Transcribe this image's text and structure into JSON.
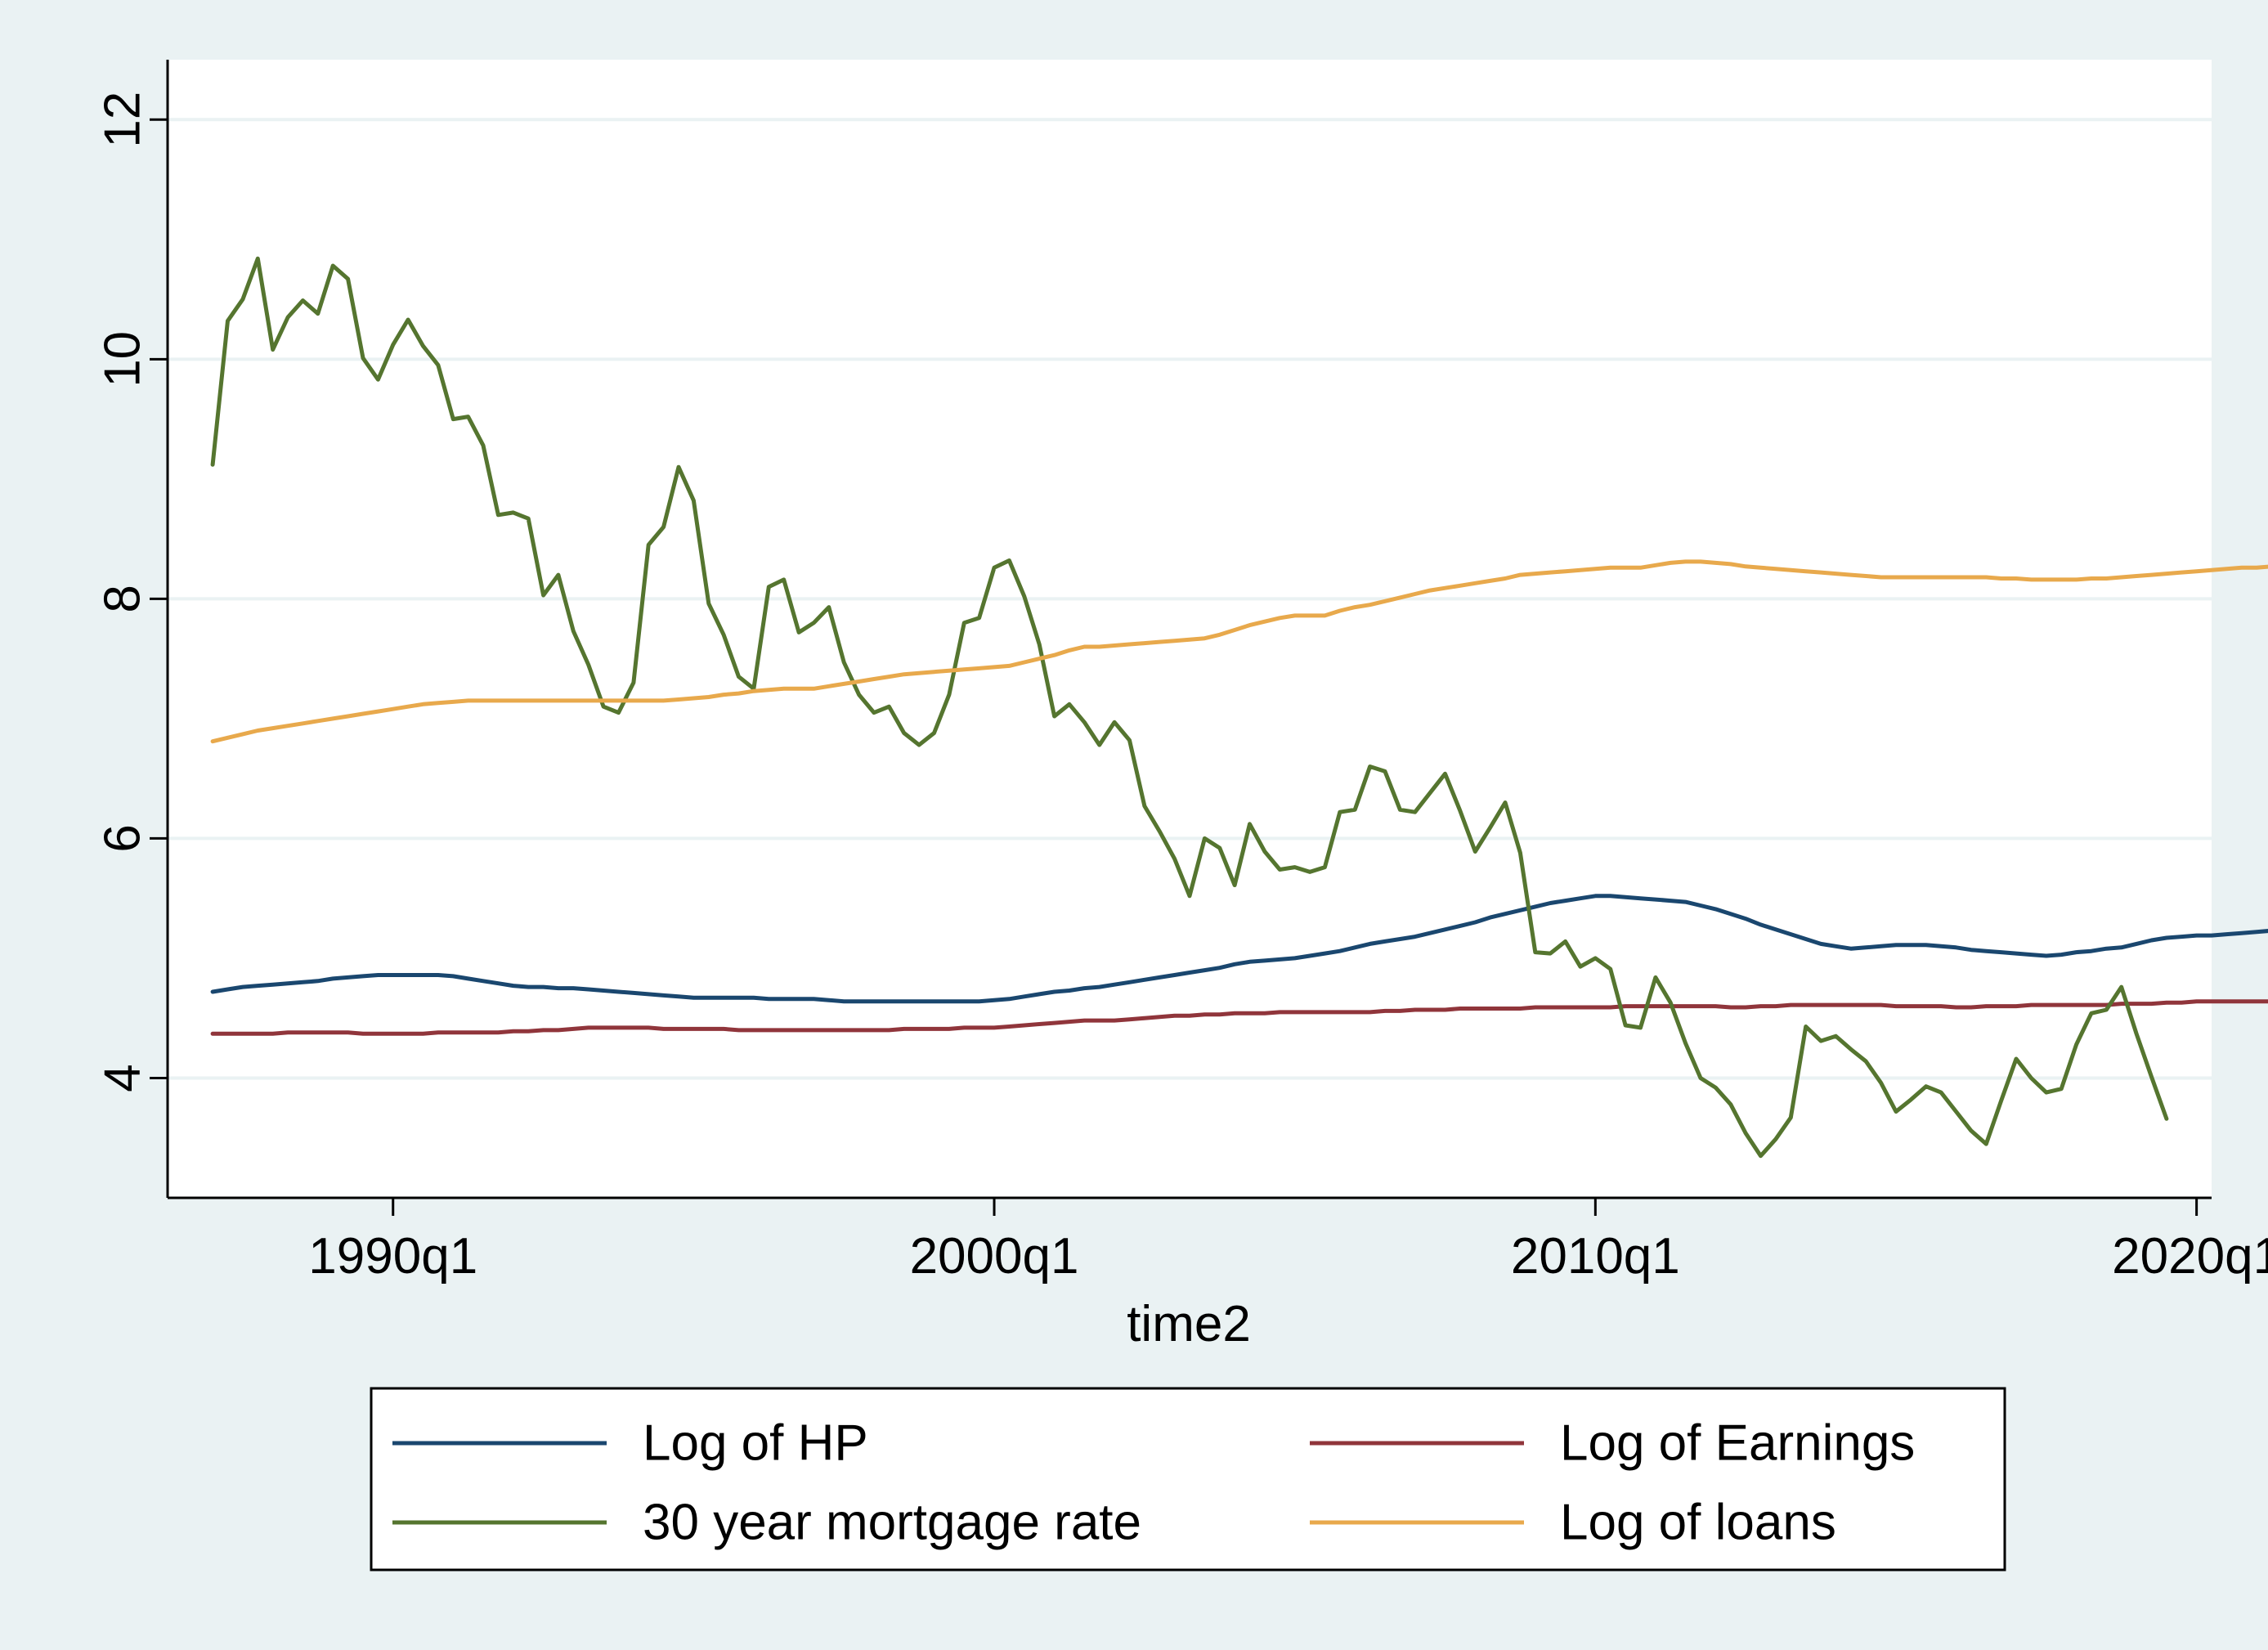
{
  "chart_data": {
    "type": "line",
    "title": "",
    "xlabel": "time2",
    "ylabel": "",
    "xlim": [
      "1986q2",
      "2020q2"
    ],
    "ylim": [
      3.0,
      12.5
    ],
    "x_start": "1987q1",
    "x_end": "2019q3",
    "xticks": [
      {
        "value": "1990q1",
        "label": "1990q1"
      },
      {
        "value": "2000q1",
        "label": "2000q1"
      },
      {
        "value": "2010q1",
        "label": "2010q1"
      },
      {
        "value": "2020q1",
        "label": "2020q1"
      }
    ],
    "yticks": [
      {
        "value": 4,
        "label": "4"
      },
      {
        "value": 6,
        "label": "6"
      },
      {
        "value": 8,
        "label": "8"
      },
      {
        "value": 10,
        "label": "10"
      },
      {
        "value": 12,
        "label": "12"
      }
    ],
    "grid": true,
    "legend_position": "bottom",
    "series": [
      {
        "name": "Log of HP",
        "color": "#1a476f",
        "values": [
          4.72,
          4.74,
          4.76,
          4.77,
          4.78,
          4.79,
          4.8,
          4.81,
          4.83,
          4.84,
          4.85,
          4.86,
          4.86,
          4.86,
          4.86,
          4.86,
          4.85,
          4.83,
          4.81,
          4.79,
          4.77,
          4.76,
          4.76,
          4.75,
          4.75,
          4.74,
          4.73,
          4.72,
          4.71,
          4.7,
          4.69,
          4.68,
          4.67,
          4.67,
          4.67,
          4.67,
          4.67,
          4.66,
          4.66,
          4.66,
          4.66,
          4.65,
          4.64,
          4.64,
          4.64,
          4.64,
          4.64,
          4.64,
          4.64,
          4.64,
          4.64,
          4.64,
          4.65,
          4.66,
          4.68,
          4.7,
          4.72,
          4.73,
          4.75,
          4.76,
          4.78,
          4.8,
          4.82,
          4.84,
          4.86,
          4.88,
          4.9,
          4.92,
          4.95,
          4.97,
          4.98,
          4.99,
          5.0,
          5.02,
          5.04,
          5.06,
          5.09,
          5.12,
          5.14,
          5.16,
          5.18,
          5.21,
          5.24,
          5.27,
          5.3,
          5.34,
          5.37,
          5.4,
          5.43,
          5.46,
          5.48,
          5.5,
          5.52,
          5.52,
          5.51,
          5.5,
          5.49,
          5.48,
          5.47,
          5.44,
          5.41,
          5.37,
          5.33,
          5.28,
          5.24,
          5.2,
          5.16,
          5.12,
          5.1,
          5.08,
          5.09,
          5.1,
          5.11,
          5.11,
          5.11,
          5.1,
          5.09,
          5.07,
          5.06,
          5.05,
          5.04,
          5.03,
          5.02,
          5.03,
          5.05,
          5.06,
          5.08,
          5.09,
          5.12,
          5.15,
          5.17,
          5.18,
          5.19,
          5.19,
          5.2,
          5.21,
          5.22,
          5.23,
          5.23,
          5.24,
          5.24,
          5.24,
          5.25,
          5.26,
          5.27,
          5.27,
          5.28,
          5.29,
          5.3,
          5.31,
          5.31,
          5.31,
          5.31,
          5.32,
          5.32,
          5.32,
          5.32,
          5.32,
          5.31
        ]
      },
      {
        "name": "Log of Earnings",
        "color": "#90353b",
        "values": [
          4.37,
          4.37,
          4.37,
          4.37,
          4.37,
          4.38,
          4.38,
          4.38,
          4.38,
          4.38,
          4.37,
          4.37,
          4.37,
          4.37,
          4.37,
          4.38,
          4.38,
          4.38,
          4.38,
          4.38,
          4.39,
          4.39,
          4.4,
          4.4,
          4.41,
          4.42,
          4.42,
          4.42,
          4.42,
          4.42,
          4.41,
          4.41,
          4.41,
          4.41,
          4.41,
          4.4,
          4.4,
          4.4,
          4.4,
          4.4,
          4.4,
          4.4,
          4.4,
          4.4,
          4.4,
          4.4,
          4.41,
          4.41,
          4.41,
          4.41,
          4.42,
          4.42,
          4.42,
          4.43,
          4.44,
          4.45,
          4.46,
          4.47,
          4.48,
          4.48,
          4.48,
          4.49,
          4.5,
          4.51,
          4.52,
          4.52,
          4.53,
          4.53,
          4.54,
          4.54,
          4.54,
          4.55,
          4.55,
          4.55,
          4.55,
          4.55,
          4.55,
          4.55,
          4.56,
          4.56,
          4.57,
          4.57,
          4.57,
          4.58,
          4.58,
          4.58,
          4.58,
          4.58,
          4.59,
          4.59,
          4.59,
          4.59,
          4.59,
          4.59,
          4.6,
          4.6,
          4.6,
          4.6,
          4.6,
          4.6,
          4.6,
          4.59,
          4.59,
          4.6,
          4.6,
          4.61,
          4.61,
          4.61,
          4.61,
          4.61,
          4.61,
          4.61,
          4.6,
          4.6,
          4.6,
          4.6,
          4.59,
          4.59,
          4.6,
          4.6,
          4.6,
          4.61,
          4.61,
          4.61,
          4.61,
          4.61,
          4.61,
          4.62,
          4.62,
          4.62,
          4.63,
          4.63,
          4.64,
          4.64,
          4.64,
          4.64,
          4.64,
          4.64,
          4.64,
          4.65,
          4.65,
          4.65,
          4.65,
          4.65,
          4.66,
          4.66,
          4.66,
          4.66,
          4.66,
          4.67,
          4.67,
          4.67,
          4.67,
          4.67,
          4.67
        ]
      },
      {
        "name": "30 year mortgage rate",
        "color": "#55752f",
        "values": [
          9.12,
          10.32,
          10.5,
          10.84,
          10.08,
          10.35,
          10.49,
          10.38,
          10.78,
          10.67,
          10.01,
          9.83,
          10.12,
          10.33,
          10.11,
          9.95,
          9.5,
          9.52,
          9.28,
          8.7,
          8.72,
          8.67,
          8.03,
          8.2,
          7.73,
          7.45,
          7.1,
          7.05,
          7.3,
          8.45,
          8.6,
          9.1,
          8.82,
          7.96,
          7.7,
          7.35,
          7.25,
          8.1,
          8.16,
          7.72,
          7.8,
          7.93,
          7.47,
          7.2,
          7.05,
          7.1,
          6.88,
          6.78,
          6.88,
          7.2,
          7.8,
          7.84,
          8.26,
          8.32,
          8.02,
          7.62,
          7.02,
          7.12,
          6.97,
          6.78,
          6.97,
          6.82,
          6.27,
          6.06,
          5.83,
          5.52,
          6.0,
          5.92,
          5.61,
          6.12,
          5.89,
          5.74,
          5.76,
          5.72,
          5.76,
          6.22,
          6.24,
          6.6,
          6.56,
          6.24,
          6.22,
          6.38,
          6.54,
          6.23,
          5.89,
          6.09,
          6.3,
          5.88,
          5.05,
          5.04,
          5.14,
          4.93,
          5.0,
          4.91,
          4.44,
          4.42,
          4.84,
          4.63,
          4.29,
          4.0,
          3.92,
          3.78,
          3.54,
          3.35,
          3.49,
          3.67,
          4.43,
          4.31,
          4.35,
          4.24,
          4.14,
          3.96,
          3.72,
          3.82,
          3.93,
          3.88,
          3.72,
          3.56,
          3.45,
          3.81,
          4.16,
          4.0,
          3.88,
          3.91,
          4.28,
          4.54,
          4.57,
          4.76,
          4.37,
          4.01,
          3.66
        ]
      },
      {
        "name": "Log of loans",
        "color": "#e8a94c",
        "values": [
          6.81,
          6.84,
          6.87,
          6.9,
          6.92,
          6.94,
          6.96,
          6.98,
          7.0,
          7.02,
          7.04,
          7.06,
          7.08,
          7.1,
          7.12,
          7.13,
          7.14,
          7.15,
          7.15,
          7.15,
          7.15,
          7.15,
          7.15,
          7.15,
          7.15,
          7.15,
          7.15,
          7.15,
          7.15,
          7.15,
          7.15,
          7.16,
          7.17,
          7.18,
          7.2,
          7.21,
          7.23,
          7.24,
          7.25,
          7.25,
          7.25,
          7.27,
          7.29,
          7.31,
          7.33,
          7.35,
          7.37,
          7.38,
          7.39,
          7.4,
          7.41,
          7.42,
          7.43,
          7.44,
          7.47,
          7.5,
          7.53,
          7.57,
          7.6,
          7.6,
          7.61,
          7.62,
          7.63,
          7.64,
          7.65,
          7.66,
          7.67,
          7.7,
          7.74,
          7.78,
          7.81,
          7.84,
          7.86,
          7.86,
          7.86,
          7.9,
          7.93,
          7.95,
          7.98,
          8.01,
          8.04,
          8.07,
          8.09,
          8.11,
          8.13,
          8.15,
          8.17,
          8.2,
          8.21,
          8.22,
          8.23,
          8.24,
          8.25,
          8.26,
          8.26,
          8.26,
          8.28,
          8.3,
          8.31,
          8.31,
          8.3,
          8.29,
          8.27,
          8.26,
          8.25,
          8.24,
          8.23,
          8.22,
          8.21,
          8.2,
          8.19,
          8.18,
          8.18,
          8.18,
          8.18,
          8.18,
          8.18,
          8.18,
          8.18,
          8.17,
          8.17,
          8.16,
          8.16,
          8.16,
          8.16,
          8.17,
          8.17,
          8.18,
          8.19,
          8.2,
          8.21,
          8.22,
          8.23,
          8.24,
          8.25,
          8.26,
          8.26,
          8.27,
          8.27,
          8.28,
          8.28,
          8.28,
          8.29,
          8.29,
          8.29,
          8.3,
          8.3,
          8.3,
          8.3
        ]
      }
    ],
    "legend_order": [
      0,
      1,
      2,
      3
    ]
  }
}
